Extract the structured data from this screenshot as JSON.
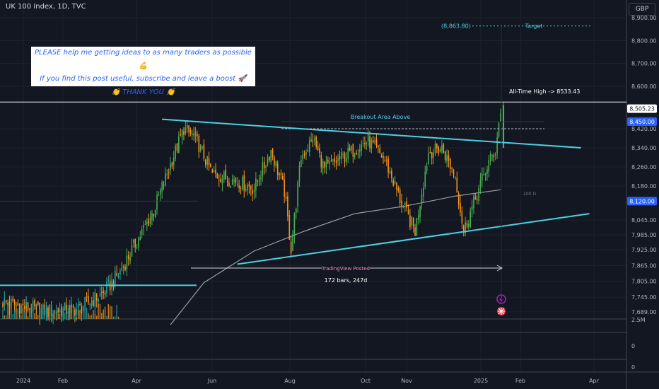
{
  "header": {
    "title": "UK 100 Index, 1D, TVC",
    "currency": "GBP"
  },
  "note": {
    "line1": "PLEASE help me getting ideas to as many traders as possible 💪",
    "line2": "If you find this post useful, subscribe and leave a boost 🚀",
    "line3": "👏 THANK YOU 👏"
  },
  "annotations": {
    "target_value": "(8,863.80)",
    "target_label": "Target",
    "ath_label": "All-Time High -> 8533.43",
    "breakout_label": "Breakout Area Above",
    "ma_label": "200 D",
    "posted_label": "TradingView Posted",
    "range_label": "172 bars, 247d"
  },
  "price_badges": [
    {
      "label": "8,505.23",
      "value": 8505.23,
      "style": "outline"
    },
    {
      "label": "8,450.00",
      "value": 8450,
      "style": "blue"
    },
    {
      "label": "8,120.00",
      "value": 8120,
      "style": "blue"
    }
  ],
  "colors": {
    "background": "#131722",
    "up": "#26a69a",
    "up_green": "#4caf50",
    "down": "#f7931a",
    "trendline": "#4dd0e1",
    "ma": "#9e9e9e",
    "badge_blue": "#2962ff",
    "target": "#4dd0e1"
  },
  "chart_data": {
    "type": "candlestick",
    "title": "UK 100 Index, 1D, TVC",
    "y_axis": {
      "ticks": [
        "8,900.00",
        "8,800.00",
        "8,700.00",
        "8,600.00",
        "8,420.00",
        "8,340.00",
        "8,260.00",
        "8,180.00",
        "8,045.00",
        "7,985.00",
        "7,925.00",
        "7,865.00",
        "7,805.00",
        "7,745.00",
        "7,689.00"
      ]
    },
    "lower_axis": {
      "ticks": [
        "2.5M",
        "0",
        "0"
      ]
    },
    "x_axis": {
      "ticks": [
        "2024",
        "Feb",
        "Apr",
        "Jun",
        "Aug",
        "Oct",
        "Nov",
        "2025",
        "Feb",
        "Apr"
      ]
    },
    "series": [
      {
        "name": "price",
        "anchors": [
          {
            "i": 0,
            "v": 7725
          },
          {
            "i": 25,
            "v": 7690
          },
          {
            "i": 45,
            "v": 7700
          },
          {
            "i": 60,
            "v": 7760
          },
          {
            "i": 70,
            "v": 7840
          },
          {
            "i": 80,
            "v": 7960
          },
          {
            "i": 90,
            "v": 8080
          },
          {
            "i": 100,
            "v": 8270
          },
          {
            "i": 108,
            "v": 8420
          },
          {
            "i": 115,
            "v": 8380
          },
          {
            "i": 125,
            "v": 8230
          },
          {
            "i": 140,
            "v": 8200
          },
          {
            "i": 150,
            "v": 8170
          },
          {
            "i": 160,
            "v": 8330
          },
          {
            "i": 168,
            "v": 8160
          },
          {
            "i": 172,
            "v": 7930
          },
          {
            "i": 178,
            "v": 8300
          },
          {
            "i": 185,
            "v": 8380
          },
          {
            "i": 192,
            "v": 8250
          },
          {
            "i": 205,
            "v": 8310
          },
          {
            "i": 218,
            "v": 8370
          },
          {
            "i": 228,
            "v": 8290
          },
          {
            "i": 238,
            "v": 8110
          },
          {
            "i": 246,
            "v": 8000
          },
          {
            "i": 254,
            "v": 8320
          },
          {
            "i": 262,
            "v": 8340
          },
          {
            "i": 270,
            "v": 8220
          },
          {
            "i": 275,
            "v": 8000
          },
          {
            "i": 283,
            "v": 8150
          },
          {
            "i": 290,
            "v": 8280
          },
          {
            "i": 294,
            "v": 8330
          },
          {
            "i": 297,
            "v": 8500
          }
        ]
      },
      {
        "name": "200 D",
        "points": [
          [
            100,
            7640
          ],
          [
            120,
            7800
          ],
          [
            150,
            7920
          ],
          [
            180,
            8000
          ],
          [
            210,
            8070
          ],
          [
            240,
            8100
          ],
          [
            270,
            8140
          ],
          [
            297,
            8165
          ]
        ]
      }
    ],
    "levels": {
      "all_time_high": 8533.43,
      "target": 8863.8,
      "breakout": 8420,
      "support_left": 7790,
      "support_mid": 8120
    },
    "trendlines": [
      {
        "name": "upper",
        "from": [
          95,
          8460
        ],
        "to": [
          345,
          8340
        ]
      },
      {
        "name": "lower",
        "from": [
          140,
          7870
        ],
        "to": [
          350,
          8070
        ]
      }
    ]
  }
}
